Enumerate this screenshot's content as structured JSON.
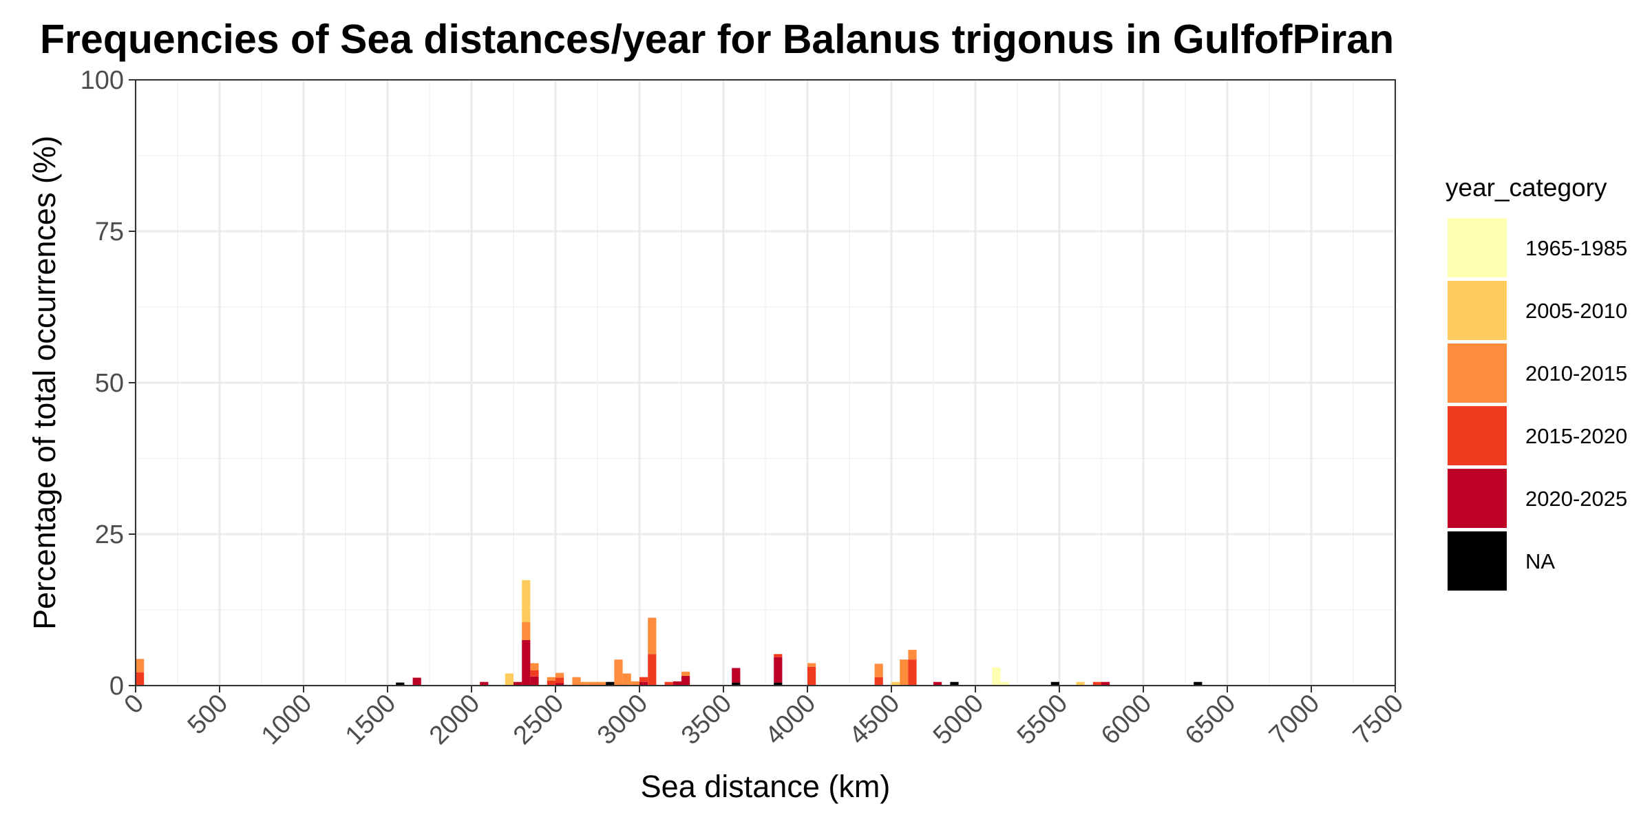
{
  "chart_data": {
    "type": "bar",
    "stacked": true,
    "title": "Frequencies of Sea distances/year for Balanus trigonus in GulfofPiran",
    "xlabel": "Sea distance (km)",
    "ylabel": "Percentage of total occurrences (%)",
    "xlim": [
      0,
      7500
    ],
    "ylim": [
      0,
      100
    ],
    "x_ticks": [
      0,
      500,
      1000,
      1500,
      2000,
      2500,
      3000,
      3500,
      4000,
      4500,
      5000,
      5500,
      6000,
      6500,
      7000,
      7500
    ],
    "x_tick_labels": [
      "0",
      "500",
      "1000",
      "1500",
      "2000",
      "2500",
      "3000",
      "3500",
      "4000",
      "4500",
      "5000",
      "5500",
      "6000",
      "6500",
      "7000",
      "7500"
    ],
    "y_ticks": [
      0,
      25,
      50,
      75,
      100
    ],
    "y_tick_labels": [
      "0",
      "25",
      "50",
      "75",
      "100"
    ],
    "bin_width": 50,
    "grid": true,
    "legend": {
      "title": "year_category",
      "position": "right",
      "items": [
        {
          "label": "1965-1985",
          "color": "#FFFFB2"
        },
        {
          "label": "2005-2010",
          "color": "#FECC5C"
        },
        {
          "label": "2010-2015",
          "color": "#FD8D3C"
        },
        {
          "label": "2015-2020",
          "color": "#F03B20"
        },
        {
          "label": "2020-2025",
          "color": "#BD0026"
        },
        {
          "label": "NA",
          "color": "#000000"
        }
      ]
    },
    "stack_order_bottom_to_top": [
      "NA",
      "2020-2025",
      "2015-2020",
      "2010-2015",
      "2005-2010",
      "1965-1985"
    ],
    "bars": [
      {
        "x0": 0,
        "segments": [
          {
            "category": "2015-2020",
            "value": 2.2
          },
          {
            "category": "2010-2015",
            "value": 2.2
          }
        ]
      },
      {
        "x0": 1550,
        "segments": [
          {
            "category": "NA",
            "value": 0.5
          }
        ]
      },
      {
        "x0": 1650,
        "segments": [
          {
            "category": "2020-2025",
            "value": 1.3
          }
        ]
      },
      {
        "x0": 2050,
        "segments": [
          {
            "category": "2020-2025",
            "value": 0.6
          }
        ]
      },
      {
        "x0": 2200,
        "segments": [
          {
            "category": "2005-2010",
            "value": 2.0
          }
        ]
      },
      {
        "x0": 2250,
        "segments": [
          {
            "category": "2020-2025",
            "value": 0.6
          }
        ]
      },
      {
        "x0": 2300,
        "segments": [
          {
            "category": "2020-2025",
            "value": 7.5
          },
          {
            "category": "2010-2015",
            "value": 3.0
          },
          {
            "category": "2005-2010",
            "value": 6.9
          }
        ]
      },
      {
        "x0": 2350,
        "segments": [
          {
            "category": "2020-2025",
            "value": 1.5
          },
          {
            "category": "2015-2020",
            "value": 1.0
          },
          {
            "category": "2010-2015",
            "value": 1.2
          }
        ]
      },
      {
        "x0": 2450,
        "segments": [
          {
            "category": "2015-2020",
            "value": 0.8
          },
          {
            "category": "2010-2015",
            "value": 0.6
          }
        ]
      },
      {
        "x0": 2500,
        "segments": [
          {
            "category": "2020-2025",
            "value": 0.4
          },
          {
            "category": "2015-2020",
            "value": 0.9
          },
          {
            "category": "2010-2015",
            "value": 0.8
          }
        ]
      },
      {
        "x0": 2600,
        "segments": [
          {
            "category": "2010-2015",
            "value": 1.4
          }
        ]
      },
      {
        "x0": 2650,
        "segments": [
          {
            "category": "2010-2015",
            "value": 0.6
          }
        ]
      },
      {
        "x0": 2700,
        "segments": [
          {
            "category": "2010-2015",
            "value": 0.6
          }
        ]
      },
      {
        "x0": 2750,
        "segments": [
          {
            "category": "2010-2015",
            "value": 0.6
          }
        ]
      },
      {
        "x0": 2800,
        "segments": [
          {
            "category": "NA",
            "value": 0.6
          }
        ]
      },
      {
        "x0": 2850,
        "segments": [
          {
            "category": "2010-2015",
            "value": 4.3
          }
        ]
      },
      {
        "x0": 2900,
        "segments": [
          {
            "category": "2010-2015",
            "value": 2.0
          }
        ]
      },
      {
        "x0": 2950,
        "segments": [
          {
            "category": "2010-2015",
            "value": 0.7
          }
        ]
      },
      {
        "x0": 3000,
        "segments": [
          {
            "category": "2020-2025",
            "value": 0.6
          },
          {
            "category": "2015-2020",
            "value": 0.8
          }
        ]
      },
      {
        "x0": 3050,
        "segments": [
          {
            "category": "2015-2020",
            "value": 5.2
          },
          {
            "category": "2010-2015",
            "value": 6.0
          }
        ]
      },
      {
        "x0": 3150,
        "segments": [
          {
            "category": "2015-2020",
            "value": 0.6
          }
        ]
      },
      {
        "x0": 3200,
        "segments": [
          {
            "category": "2020-2025",
            "value": 0.7
          }
        ]
      },
      {
        "x0": 3250,
        "segments": [
          {
            "category": "2020-2025",
            "value": 1.6
          },
          {
            "category": "2010-2015",
            "value": 0.7
          }
        ]
      },
      {
        "x0": 3550,
        "segments": [
          {
            "category": "NA",
            "value": 0.5
          },
          {
            "category": "2020-2025",
            "value": 2.4
          }
        ]
      },
      {
        "x0": 3800,
        "segments": [
          {
            "category": "NA",
            "value": 0.5
          },
          {
            "category": "2020-2025",
            "value": 4.2
          },
          {
            "category": "2015-2020",
            "value": 0.5
          }
        ]
      },
      {
        "x0": 4000,
        "segments": [
          {
            "category": "2015-2020",
            "value": 3.1
          },
          {
            "category": "2010-2015",
            "value": 0.6
          }
        ]
      },
      {
        "x0": 4400,
        "segments": [
          {
            "category": "2015-2020",
            "value": 1.4
          },
          {
            "category": "2010-2015",
            "value": 2.2
          }
        ]
      },
      {
        "x0": 4500,
        "segments": [
          {
            "category": "2005-2010",
            "value": 0.6
          }
        ]
      },
      {
        "x0": 4550,
        "segments": [
          {
            "category": "2010-2015",
            "value": 4.3
          }
        ]
      },
      {
        "x0": 4600,
        "segments": [
          {
            "category": "2015-2020",
            "value": 4.3
          },
          {
            "category": "2010-2015",
            "value": 1.6
          }
        ]
      },
      {
        "x0": 4750,
        "segments": [
          {
            "category": "2020-2025",
            "value": 0.6
          }
        ]
      },
      {
        "x0": 4850,
        "segments": [
          {
            "category": "NA",
            "value": 0.6
          }
        ]
      },
      {
        "x0": 5100,
        "segments": [
          {
            "category": "1965-1985",
            "value": 3.0
          }
        ]
      },
      {
        "x0": 5150,
        "segments": [
          {
            "category": "1965-1985",
            "value": 0.6
          }
        ]
      },
      {
        "x0": 5450,
        "segments": [
          {
            "category": "NA",
            "value": 0.6
          }
        ]
      },
      {
        "x0": 5600,
        "segments": [
          {
            "category": "2005-2010",
            "value": 0.6
          }
        ]
      },
      {
        "x0": 5700,
        "segments": [
          {
            "category": "2015-2020",
            "value": 0.6
          }
        ]
      },
      {
        "x0": 5750,
        "segments": [
          {
            "category": "2020-2025",
            "value": 0.6
          }
        ]
      },
      {
        "x0": 6300,
        "segments": [
          {
            "category": "NA",
            "value": 0.6
          }
        ]
      }
    ]
  }
}
